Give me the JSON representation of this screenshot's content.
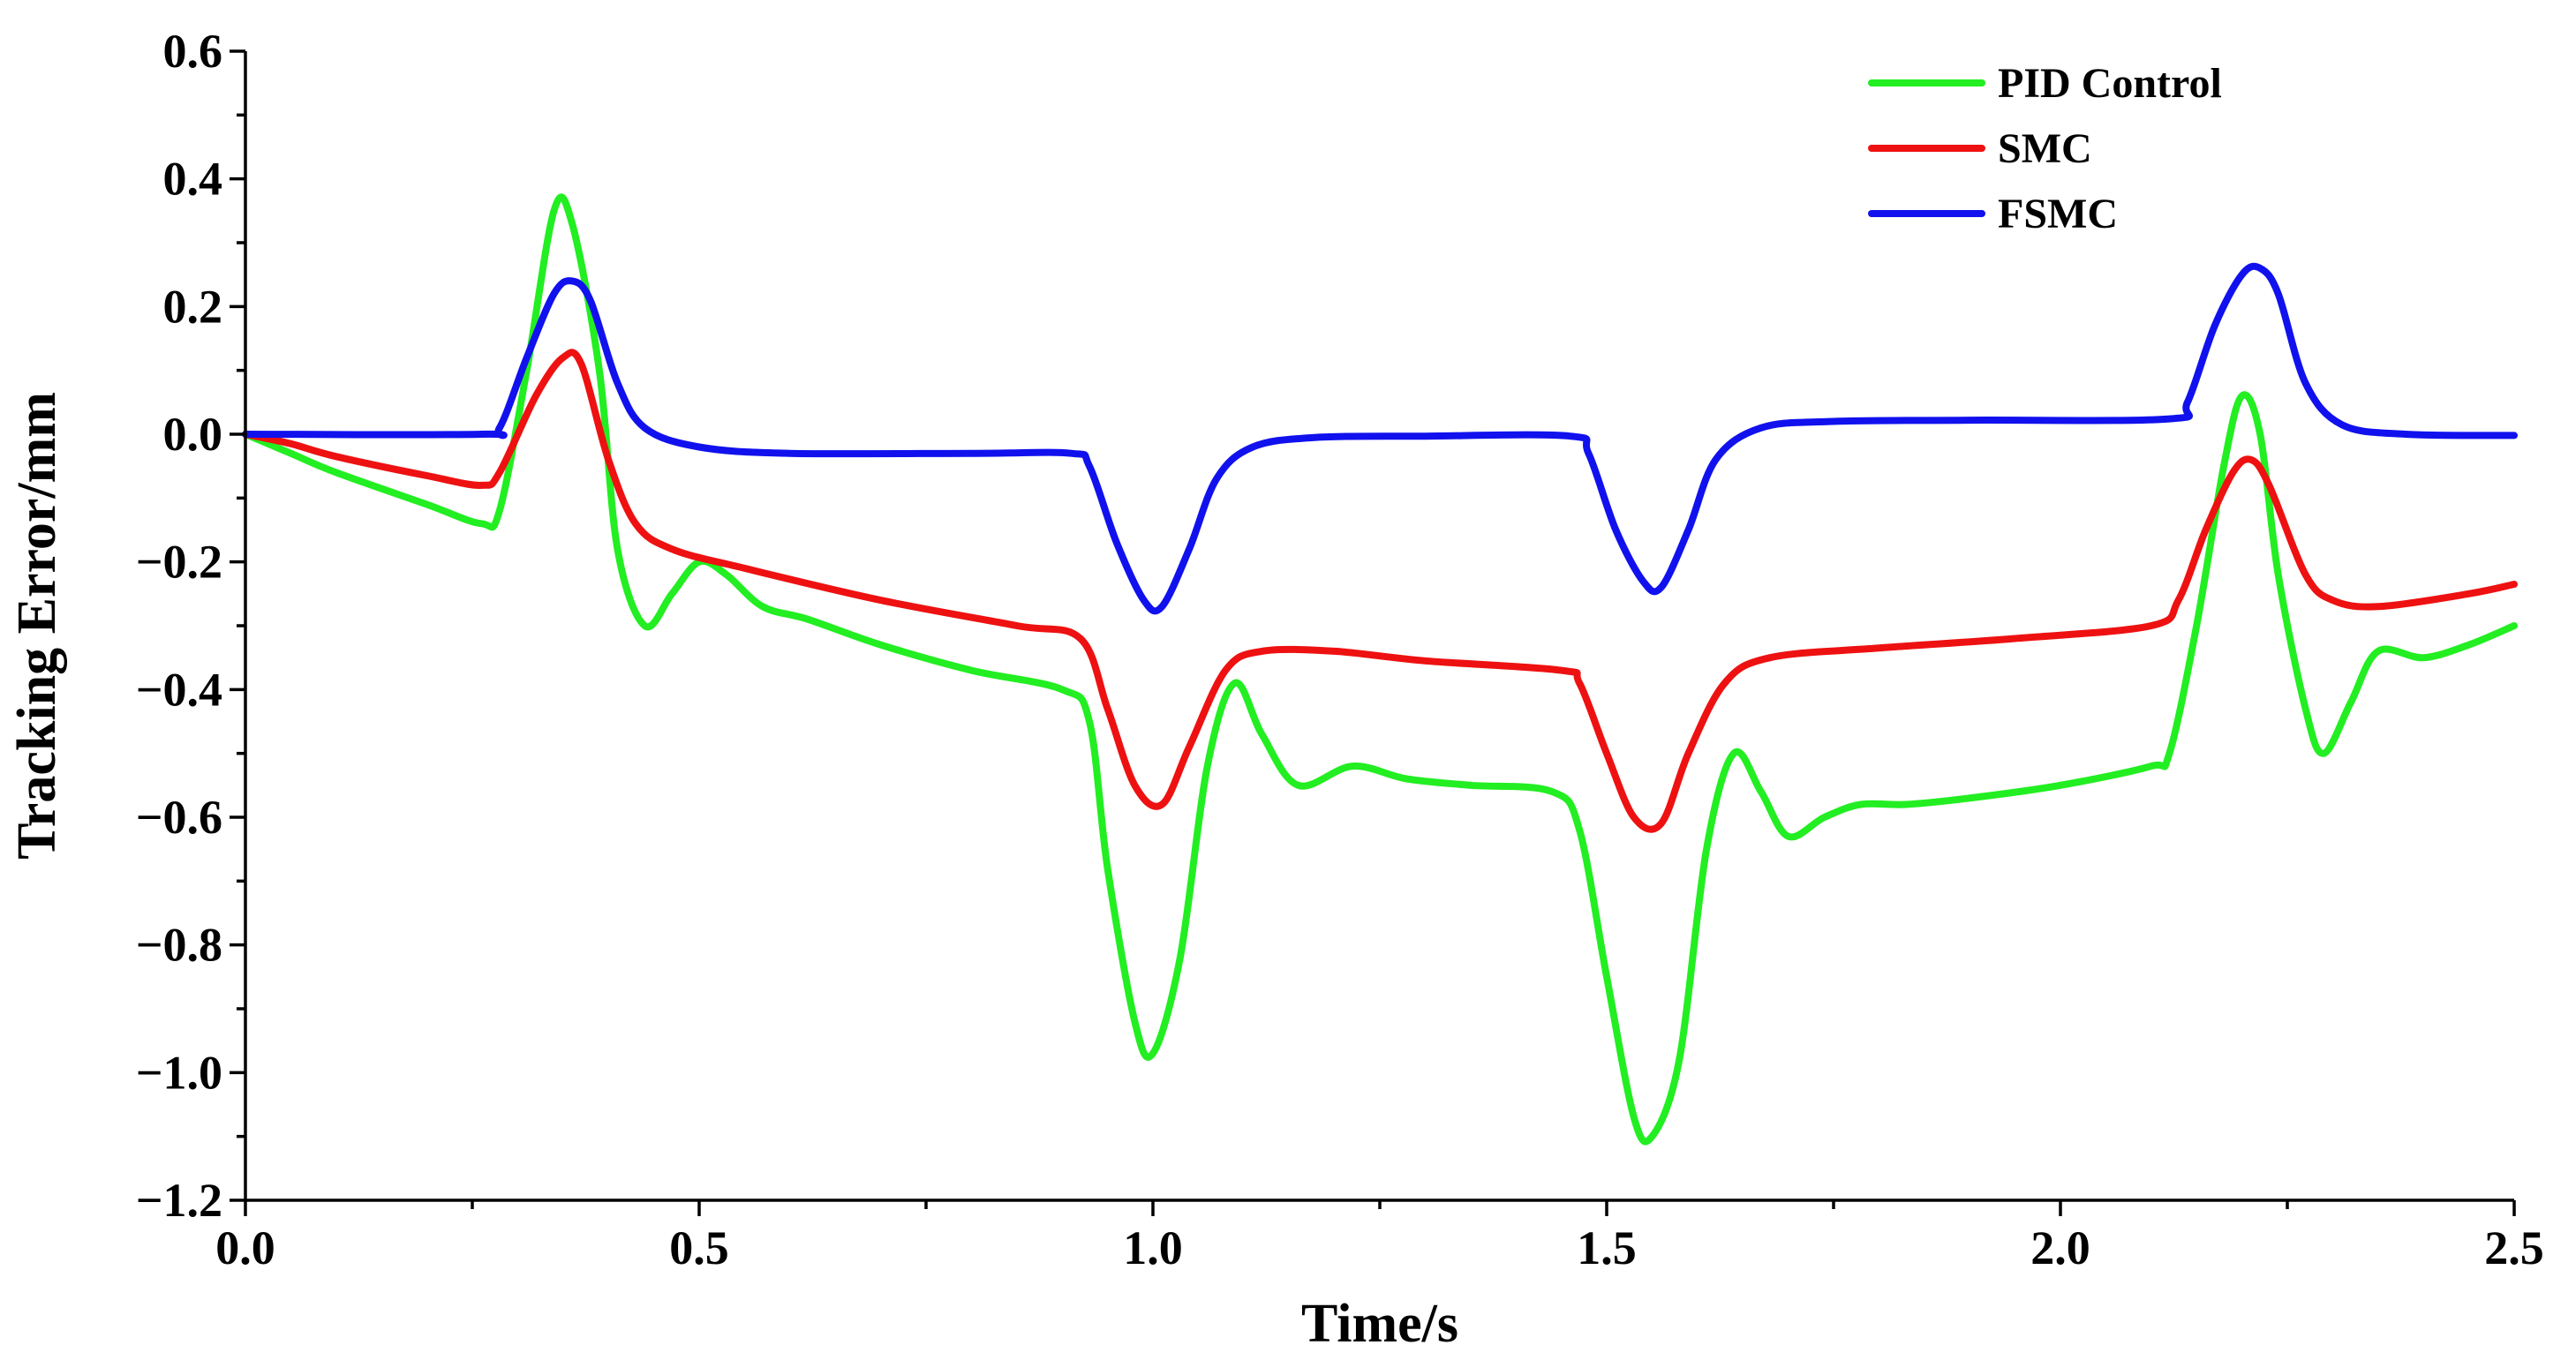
{
  "chart_data": {
    "type": "line",
    "xlabel": "Time/s",
    "ylabel": "Tracking Error/mm",
    "xlim": [
      0,
      2.5
    ],
    "ylim": [
      -1.2,
      0.6
    ],
    "x_ticks": [
      0.0,
      0.5,
      1.0,
      1.5,
      2.0,
      2.5
    ],
    "x_tick_labels": [
      "0.0",
      "0.5",
      "1.0",
      "1.5",
      "2.0",
      "2.5"
    ],
    "y_ticks": [
      0.6,
      0.4,
      0.2,
      0.0,
      -0.2,
      -0.4,
      -0.6,
      -0.8,
      -1.0,
      -1.2
    ],
    "y_tick_labels": [
      "0.6",
      "0.4",
      "0.2",
      "0.0",
      "−0.2",
      "−0.4",
      "−0.6",
      "−0.8",
      "−1.0",
      "−1.2"
    ],
    "legend_position": "top-right",
    "grid": false,
    "series": [
      {
        "name": "PID Control",
        "color": "#22ee22",
        "points": [
          [
            0,
            0
          ],
          [
            0.05,
            -0.03
          ],
          [
            0.1,
            -0.06
          ],
          [
            0.2,
            -0.11
          ],
          [
            0.26,
            -0.14
          ],
          [
            0.28,
            -0.12
          ],
          [
            0.31,
            0.1
          ],
          [
            0.34,
            0.35
          ],
          [
            0.36,
            0.33
          ],
          [
            0.39,
            0.1
          ],
          [
            0.41,
            -0.18
          ],
          [
            0.44,
            -0.3
          ],
          [
            0.47,
            -0.25
          ],
          [
            0.5,
            -0.2
          ],
          [
            0.53,
            -0.22
          ],
          [
            0.57,
            -0.27
          ],
          [
            0.62,
            -0.29
          ],
          [
            0.7,
            -0.33
          ],
          [
            0.8,
            -0.37
          ],
          [
            0.9,
            -0.4
          ],
          [
            0.93,
            -0.45
          ],
          [
            0.95,
            -0.68
          ],
          [
            0.98,
            -0.92
          ],
          [
            1.0,
            -0.97
          ],
          [
            1.03,
            -0.82
          ],
          [
            1.06,
            -0.52
          ],
          [
            1.09,
            -0.39
          ],
          [
            1.12,
            -0.47
          ],
          [
            1.16,
            -0.55
          ],
          [
            1.22,
            -0.52
          ],
          [
            1.28,
            -0.54
          ],
          [
            1.35,
            -0.55
          ],
          [
            1.44,
            -0.56
          ],
          [
            1.47,
            -0.62
          ],
          [
            1.5,
            -0.85
          ],
          [
            1.53,
            -1.07
          ],
          [
            1.55,
            -1.1
          ],
          [
            1.58,
            -0.98
          ],
          [
            1.61,
            -0.65
          ],
          [
            1.64,
            -0.5
          ],
          [
            1.67,
            -0.56
          ],
          [
            1.7,
            -0.63
          ],
          [
            1.74,
            -0.6
          ],
          [
            1.78,
            -0.58
          ],
          [
            1.83,
            -0.58
          ],
          [
            1.9,
            -0.57
          ],
          [
            2.0,
            -0.55
          ],
          [
            2.1,
            -0.52
          ],
          [
            2.12,
            -0.5
          ],
          [
            2.15,
            -0.3
          ],
          [
            2.18,
            -0.05
          ],
          [
            2.2,
            0.06
          ],
          [
            2.22,
            0.0
          ],
          [
            2.24,
            -0.22
          ],
          [
            2.27,
            -0.43
          ],
          [
            2.29,
            -0.5
          ],
          [
            2.32,
            -0.42
          ],
          [
            2.35,
            -0.34
          ],
          [
            2.4,
            -0.35
          ],
          [
            2.45,
            -0.33
          ],
          [
            2.5,
            -0.3
          ]
        ]
      },
      {
        "name": "SMC",
        "color": "#ee1111",
        "points": [
          [
            0,
            0
          ],
          [
            0.05,
            -0.015
          ],
          [
            0.1,
            -0.035
          ],
          [
            0.2,
            -0.065
          ],
          [
            0.26,
            -0.08
          ],
          [
            0.28,
            -0.06
          ],
          [
            0.32,
            0.06
          ],
          [
            0.35,
            0.12
          ],
          [
            0.37,
            0.11
          ],
          [
            0.4,
            -0.04
          ],
          [
            0.43,
            -0.14
          ],
          [
            0.47,
            -0.18
          ],
          [
            0.55,
            -0.21
          ],
          [
            0.7,
            -0.26
          ],
          [
            0.85,
            -0.3
          ],
          [
            0.92,
            -0.32
          ],
          [
            0.95,
            -0.43
          ],
          [
            0.98,
            -0.55
          ],
          [
            1.01,
            -0.58
          ],
          [
            1.04,
            -0.49
          ],
          [
            1.08,
            -0.37
          ],
          [
            1.12,
            -0.34
          ],
          [
            1.2,
            -0.34
          ],
          [
            1.3,
            -0.355
          ],
          [
            1.45,
            -0.37
          ],
          [
            1.47,
            -0.39
          ],
          [
            1.5,
            -0.5
          ],
          [
            1.53,
            -0.6
          ],
          [
            1.56,
            -0.61
          ],
          [
            1.59,
            -0.5
          ],
          [
            1.63,
            -0.39
          ],
          [
            1.68,
            -0.35
          ],
          [
            1.8,
            -0.335
          ],
          [
            1.95,
            -0.32
          ],
          [
            2.1,
            -0.3
          ],
          [
            2.13,
            -0.26
          ],
          [
            2.16,
            -0.15
          ],
          [
            2.19,
            -0.06
          ],
          [
            2.21,
            -0.04
          ],
          [
            2.23,
            -0.08
          ],
          [
            2.27,
            -0.22
          ],
          [
            2.3,
            -0.26
          ],
          [
            2.35,
            -0.27
          ],
          [
            2.45,
            -0.25
          ],
          [
            2.5,
            -0.235
          ]
        ]
      },
      {
        "name": "FSMC",
        "color": "#1111ee",
        "points": [
          [
            0,
            0
          ],
          [
            0.26,
            0
          ],
          [
            0.28,
            0.01
          ],
          [
            0.31,
            0.12
          ],
          [
            0.34,
            0.22
          ],
          [
            0.36,
            0.24
          ],
          [
            0.38,
            0.21
          ],
          [
            0.41,
            0.08
          ],
          [
            0.44,
            0.01
          ],
          [
            0.5,
            -0.02
          ],
          [
            0.6,
            -0.03
          ],
          [
            0.8,
            -0.03
          ],
          [
            0.91,
            -0.03
          ],
          [
            0.93,
            -0.05
          ],
          [
            0.96,
            -0.17
          ],
          [
            0.99,
            -0.26
          ],
          [
            1.01,
            -0.27
          ],
          [
            1.04,
            -0.18
          ],
          [
            1.07,
            -0.07
          ],
          [
            1.11,
            -0.02
          ],
          [
            1.18,
            -0.005
          ],
          [
            1.3,
            -0.003
          ],
          [
            1.46,
            -0.003
          ],
          [
            1.48,
            -0.03
          ],
          [
            1.51,
            -0.15
          ],
          [
            1.54,
            -0.23
          ],
          [
            1.56,
            -0.24
          ],
          [
            1.59,
            -0.15
          ],
          [
            1.62,
            -0.04
          ],
          [
            1.67,
            0.01
          ],
          [
            1.75,
            0.02
          ],
          [
            1.9,
            0.022
          ],
          [
            2.12,
            0.024
          ],
          [
            2.14,
            0.05
          ],
          [
            2.17,
            0.17
          ],
          [
            2.2,
            0.25
          ],
          [
            2.22,
            0.26
          ],
          [
            2.24,
            0.22
          ],
          [
            2.27,
            0.08
          ],
          [
            2.31,
            0.015
          ],
          [
            2.38,
            0.0
          ],
          [
            2.5,
            -0.002
          ]
        ]
      }
    ]
  }
}
